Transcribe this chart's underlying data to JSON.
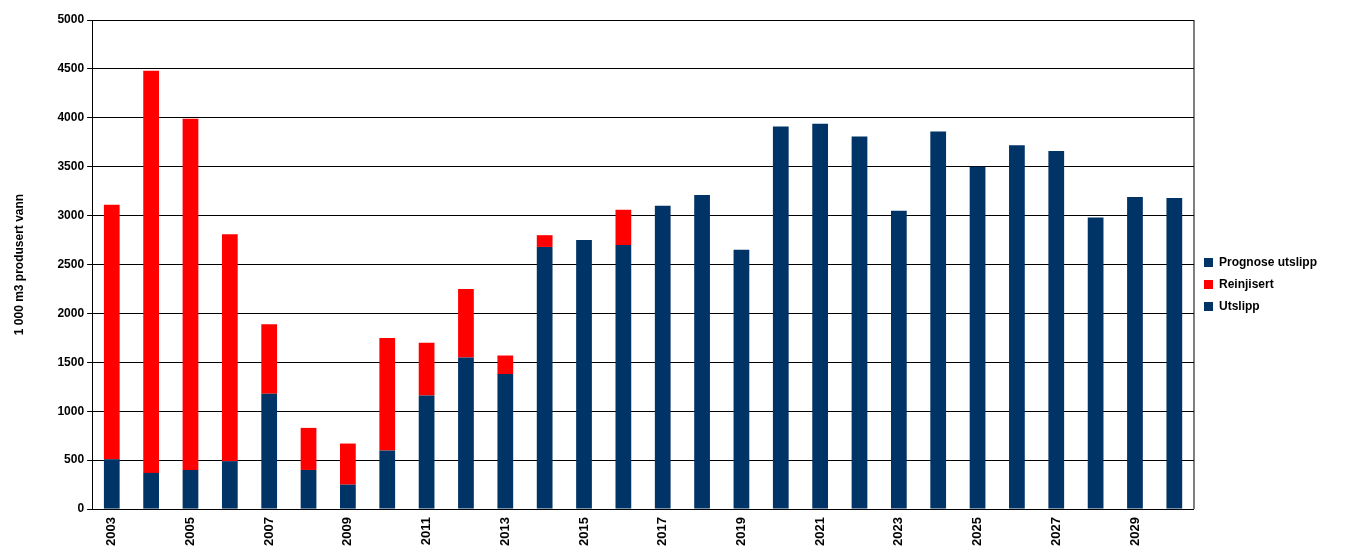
{
  "chart_data": {
    "type": "bar",
    "stacked": true,
    "ylabel": "1 000 m3 produsert vann",
    "categories": [
      "2003",
      null,
      "2005",
      null,
      "2007",
      null,
      "2009",
      null,
      "2011",
      null,
      "2013",
      null,
      "2015",
      null,
      "2017",
      null,
      "2019",
      null,
      "2021",
      null,
      "2023",
      null,
      "2025",
      null,
      "2027",
      null,
      "2029",
      null
    ],
    "series": [
      {
        "name": "Utslipp",
        "color": "#003366",
        "values": [
          510,
          370,
          400,
          490,
          1180,
          400,
          250,
          600,
          1160,
          1550,
          1380,
          2680,
          2750,
          2700,
          null,
          null,
          null,
          null,
          null,
          null,
          null,
          null,
          null,
          null,
          null,
          null,
          null,
          null
        ]
      },
      {
        "name": "Reinjisert",
        "color": "#ff0000",
        "values": [
          2600,
          4110,
          3590,
          2320,
          710,
          430,
          420,
          1150,
          540,
          700,
          190,
          120,
          0,
          360,
          null,
          null,
          null,
          null,
          null,
          null,
          null,
          null,
          null,
          null,
          null,
          null,
          null,
          null
        ]
      },
      {
        "name": "Prognose utslipp",
        "color": "#003366",
        "values": [
          null,
          null,
          null,
          null,
          null,
          null,
          null,
          null,
          null,
          null,
          null,
          null,
          null,
          null,
          3100,
          3210,
          2650,
          3910,
          3940,
          3810,
          3050,
          3860,
          3500,
          3720,
          3660,
          2980,
          3190,
          3180
        ]
      }
    ],
    "ylim": [
      0,
      5000
    ],
    "yticks": [
      0,
      500,
      1000,
      1500,
      2000,
      2500,
      3000,
      3500,
      4000,
      4500,
      5000
    ],
    "grid": "y",
    "legend": "right"
  }
}
